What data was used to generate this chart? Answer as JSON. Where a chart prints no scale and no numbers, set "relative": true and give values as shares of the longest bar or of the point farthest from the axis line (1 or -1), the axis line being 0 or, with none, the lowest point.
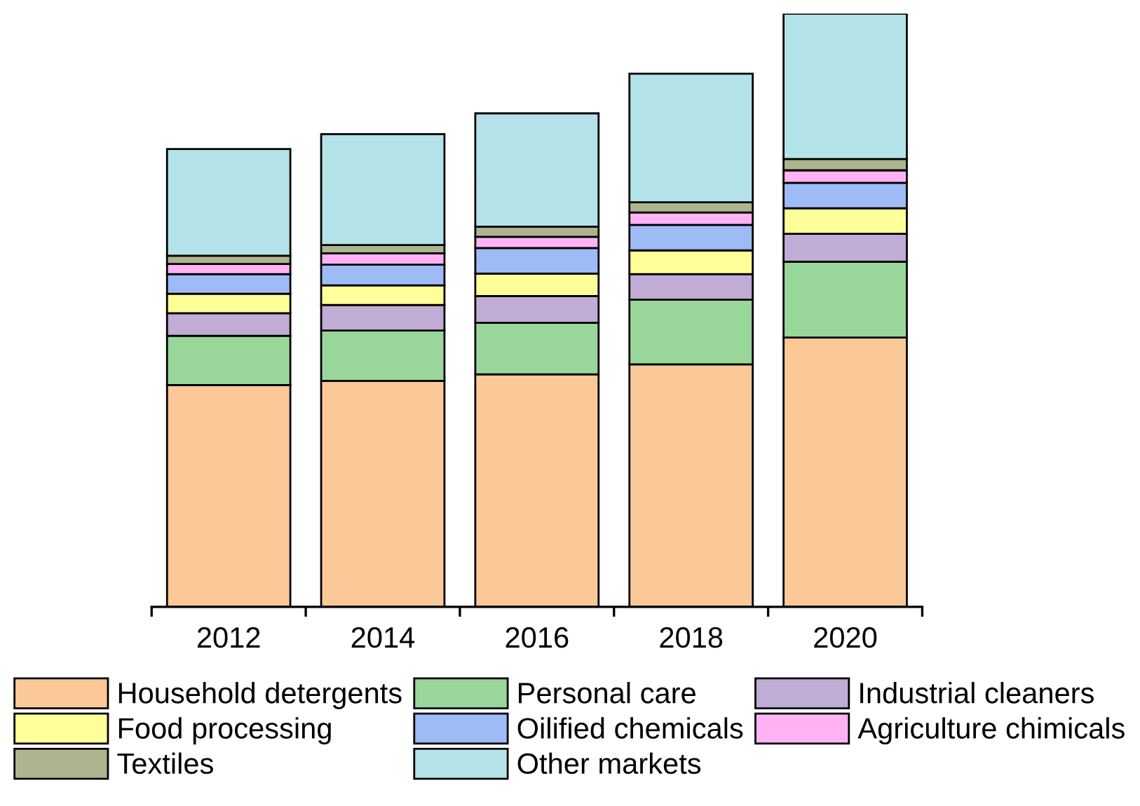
{
  "chart_data": {
    "type": "bar",
    "stacked": true,
    "relative": true,
    "legend": "bottom",
    "grid": false,
    "categories": [
      "2012",
      "2014",
      "2016",
      "2018",
      "2020"
    ],
    "series": [
      {
        "name": "Household detergents",
        "color": "#fbc898",
        "values": [
          0.374,
          0.381,
          0.392,
          0.409,
          0.454
        ]
      },
      {
        "name": "Personal care",
        "color": "#99d69a",
        "values": [
          0.083,
          0.085,
          0.087,
          0.109,
          0.128
        ]
      },
      {
        "name": "Industrial cleaners",
        "color": "#c0acd4",
        "values": [
          0.038,
          0.043,
          0.045,
          0.043,
          0.047
        ]
      },
      {
        "name": "Food processing",
        "color": "#ffff99",
        "values": [
          0.033,
          0.033,
          0.038,
          0.04,
          0.043
        ]
      },
      {
        "name": "Oilified chemicals",
        "color": "#9fbbf5",
        "values": [
          0.033,
          0.035,
          0.043,
          0.043,
          0.043
        ]
      },
      {
        "name": "Agriculture chimicals",
        "color": "#ffb3f5",
        "values": [
          0.017,
          0.019,
          0.019,
          0.021,
          0.021
        ]
      },
      {
        "name": "Textiles",
        "color": "#aeb48f",
        "values": [
          0.014,
          0.014,
          0.017,
          0.017,
          0.019
        ]
      },
      {
        "name": "Other markets",
        "color": "#b3e3e9",
        "values": [
          0.18,
          0.187,
          0.191,
          0.217,
          0.245
        ]
      }
    ]
  }
}
